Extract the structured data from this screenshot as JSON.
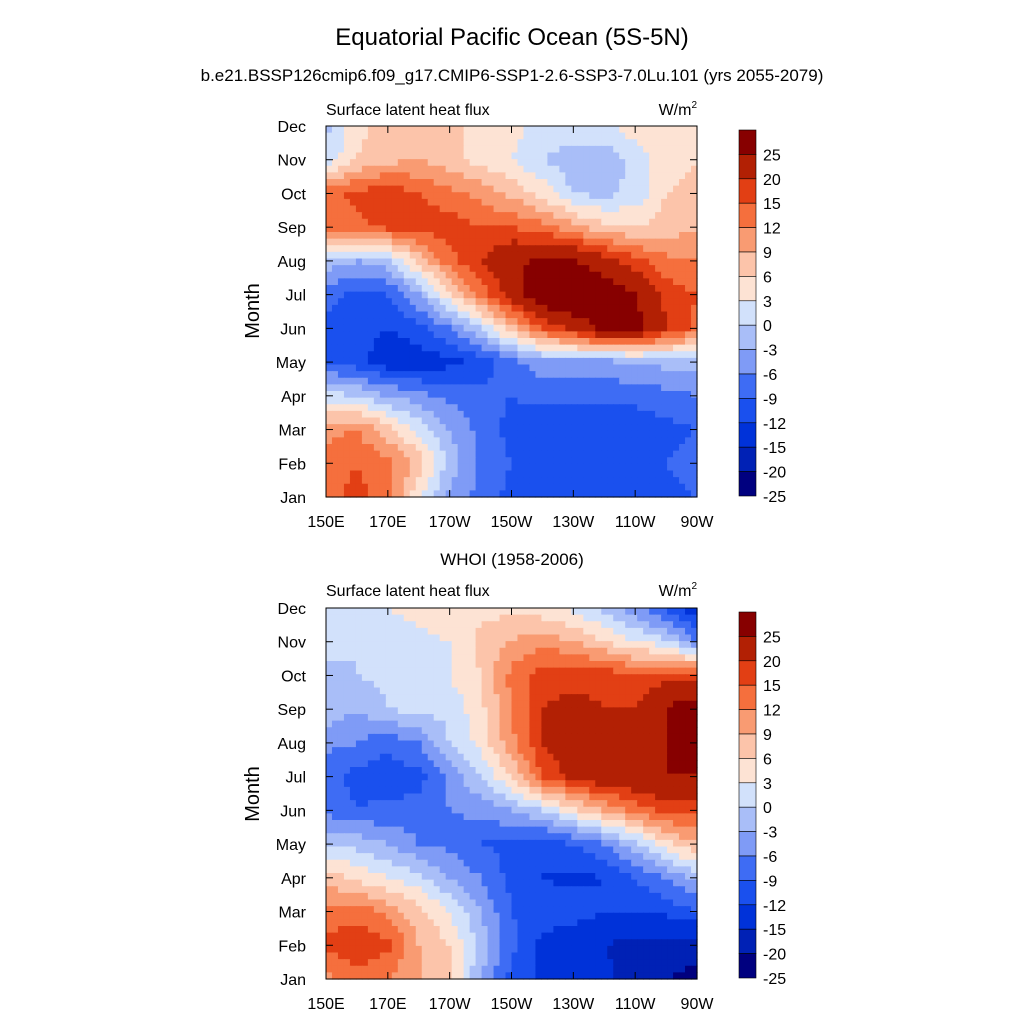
{
  "figure": {
    "title": "Equatorial Pacific Ocean (5S-5N)",
    "subtitle": "b.e21.BSSP126cmip6.f09_g17.CMIP6-SSP1-2.6-SSP3-7.0Lu.101 (yrs 2055-2079)"
  },
  "colors": {
    "levels": [
      -25,
      -20,
      -15,
      -12,
      -9,
      -6,
      -3,
      0,
      3,
      6,
      9,
      12,
      15,
      20,
      25
    ],
    "bins": [
      "#00007f",
      "#0021b5",
      "#0032d9",
      "#1a50ee",
      "#3e6cf4",
      "#7f9bf6",
      "#a9bef8",
      "#d2e1fb",
      "#fde3d4",
      "#fcc4aa",
      "#f99b72",
      "#f56f3d",
      "#e23f14",
      "#b22004",
      "#870000"
    ],
    "frame": "#000000"
  },
  "chart_data": [
    {
      "type": "heatmap",
      "title": "",
      "left_label": "Surface latent heat flux",
      "units_label": "W/m",
      "units_sup": "2",
      "ylabel": "Month",
      "xlabel": "",
      "x_ticks": [
        "150E",
        "170E",
        "170W",
        "150W",
        "130W",
        "110W",
        "90W"
      ],
      "x_range": [
        150,
        270
      ],
      "y_ticks": [
        "Jan",
        "Feb",
        "Mar",
        "Apr",
        "May",
        "Jun",
        "Jul",
        "Aug",
        "Sep",
        "Oct",
        "Nov",
        "Dec"
      ],
      "colorbar_labels": [
        "25",
        "20",
        "15",
        "12",
        "9",
        "6",
        "3",
        "0",
        "-3",
        "-6",
        "-9",
        "-12",
        "-15",
        "-20",
        "-25"
      ],
      "x": [
        150,
        160,
        170,
        180,
        190,
        200,
        210,
        220,
        230,
        240,
        250,
        260,
        270
      ],
      "months": [
        "Jan",
        "Feb",
        "Mar",
        "Apr",
        "May",
        "Jun",
        "Jul",
        "Aug",
        "Sep",
        "Oct",
        "Nov",
        "Dec"
      ],
      "z": [
        [
          11,
          13,
          11,
          0,
          -7,
          -10,
          -13,
          -14,
          -13,
          -13,
          -14,
          -13,
          -12
        ],
        [
          10,
          12,
          10,
          5,
          -4,
          -10,
          -12,
          -14,
          -14,
          -13,
          -13,
          -12,
          -11
        ],
        [
          8,
          9,
          4,
          -1,
          -6,
          -10,
          -13,
          -14,
          -15,
          -15,
          -14,
          -13,
          -12
        ],
        [
          -2,
          -3,
          -6,
          -8,
          -10,
          -11,
          -12,
          -11,
          -11,
          -11,
          -11,
          -10,
          -9
        ],
        [
          -12,
          -14,
          -17,
          -17,
          -16,
          -14,
          -10,
          -7,
          -7,
          -7,
          -6,
          -5,
          -5
        ],
        [
          -13,
          -14,
          -15,
          -13,
          -9,
          -3,
          5,
          12,
          16,
          22,
          22,
          15,
          11
        ],
        [
          -11,
          -13,
          -12,
          -6,
          2,
          10,
          17,
          25,
          26,
          24,
          20,
          14,
          12
        ],
        [
          -4,
          -6,
          -4,
          4,
          11,
          15,
          19,
          21,
          20,
          17,
          13,
          10,
          9
        ],
        [
          10,
          11,
          13,
          13,
          14,
          12,
          12,
          10,
          7,
          4,
          3,
          4,
          6
        ],
        [
          11,
          13,
          14,
          12,
          10,
          8,
          5,
          2,
          -3,
          -4,
          -2,
          3,
          4
        ],
        [
          -2,
          3,
          5,
          6,
          4,
          2,
          0,
          -3,
          -5,
          -5,
          -2,
          2,
          3
        ],
        [
          -4,
          2,
          4,
          5,
          4,
          2,
          1,
          -1,
          -1,
          -1,
          2,
          3,
          3
        ]
      ]
    },
    {
      "type": "heatmap",
      "title": "WHOI (1958-2006)",
      "left_label": "Surface latent heat flux",
      "units_label": "W/m",
      "units_sup": "2",
      "ylabel": "Month",
      "xlabel": "",
      "x_ticks": [
        "150E",
        "170E",
        "170W",
        "150W",
        "130W",
        "110W",
        "90W"
      ],
      "x_range": [
        150,
        270
      ],
      "y_ticks": [
        "Jan",
        "Feb",
        "Mar",
        "Apr",
        "May",
        "Jun",
        "Jul",
        "Aug",
        "Sep",
        "Oct",
        "Nov",
        "Dec"
      ],
      "colorbar_labels": [
        "25",
        "20",
        "15",
        "12",
        "9",
        "6",
        "3",
        "0",
        "-3",
        "-6",
        "-9",
        "-12",
        "-15",
        "-20",
        "-25"
      ],
      "x": [
        150,
        160,
        170,
        180,
        190,
        200,
        210,
        220,
        230,
        240,
        250,
        260,
        270
      ],
      "months": [
        "Jan",
        "Feb",
        "Mar",
        "Apr",
        "May",
        "Jun",
        "Jul",
        "Aug",
        "Sep",
        "Oct",
        "Nov",
        "Dec"
      ],
      "z": [
        [
          8,
          11,
          9,
          6,
          4,
          -6,
          -13,
          -16,
          -16,
          -19,
          -22,
          -25,
          -27
        ],
        [
          13,
          14,
          13,
          6,
          3,
          -4,
          -11,
          -16,
          -18,
          -20,
          -22,
          -22,
          -22
        ],
        [
          10,
          11,
          8,
          4,
          0,
          -6,
          -12,
          -13,
          -13,
          -15,
          -14,
          -14,
          -12
        ],
        [
          5,
          2,
          0,
          -2,
          -6,
          -9,
          -13,
          -15,
          -16,
          -15,
          -12,
          -9,
          -5
        ],
        [
          -3,
          -4,
          -6,
          -9,
          -10,
          -12,
          -13,
          -14,
          -12,
          -9,
          -4,
          2,
          6
        ],
        [
          -10,
          -12,
          -11,
          -11,
          -9,
          -8,
          -6,
          -3,
          2,
          6,
          10,
          13,
          13
        ],
        [
          -11,
          -13,
          -14,
          -13,
          -8,
          -3,
          3,
          12,
          16,
          18,
          19,
          20,
          20
        ],
        [
          -8,
          -9,
          -11,
          -9,
          -3,
          1,
          8,
          15,
          19,
          20,
          18,
          20,
          22
        ],
        [
          -4,
          -6,
          -3,
          -2,
          -2,
          2,
          9,
          15,
          16,
          15,
          15,
          20,
          24
        ],
        [
          -4,
          -3,
          -2,
          -3,
          0,
          3,
          10,
          14,
          14,
          14,
          12,
          14,
          13
        ],
        [
          -2,
          -3,
          -2,
          -1,
          0,
          4,
          6,
          8,
          6,
          3,
          0,
          -2,
          -9
        ],
        [
          -1,
          -1,
          0,
          1,
          2,
          2,
          2,
          1,
          -1,
          -4,
          -8,
          -13,
          -18
        ]
      ]
    }
  ]
}
